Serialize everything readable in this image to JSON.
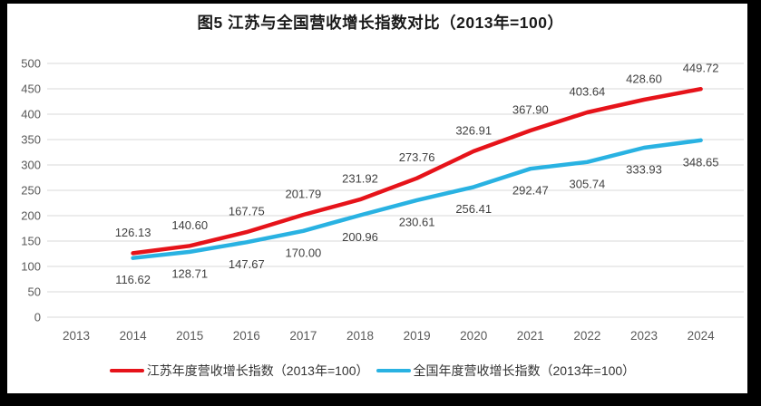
{
  "chart_data": {
    "type": "line",
    "title": "图5  江苏与全国营收增长指数对比（2013年=100）",
    "categories": [
      "2013",
      "2014",
      "2015",
      "2016",
      "2017",
      "2018",
      "2019",
      "2020",
      "2021",
      "2022",
      "2023",
      "2024"
    ],
    "series": [
      {
        "name": "江苏年度营收增长指数（2013年=100）",
        "color": "#e6131a",
        "start_category_index": 1,
        "values": [
          126.13,
          140.6,
          167.75,
          201.79,
          231.92,
          273.76,
          326.91,
          367.9,
          403.64,
          428.6,
          449.72
        ]
      },
      {
        "name": "全国年度营收增长指数（2013年=100）",
        "color": "#29b2e2",
        "start_category_index": 1,
        "values": [
          116.62,
          128.71,
          147.67,
          170.0,
          200.96,
          230.61,
          256.41,
          292.47,
          305.74,
          333.93,
          348.65
        ]
      }
    ],
    "yticks": [
      0,
      50,
      100,
      150,
      200,
      250,
      300,
      350,
      400,
      450,
      500
    ],
    "ylim": [
      0,
      500
    ],
    "grid": "horizontal",
    "legend_position": "bottom",
    "data_labels": true,
    "data_labels_decimals": 2
  },
  "palette": {
    "grid_line": "#d9d9d9",
    "axis_tick_text": "#595959",
    "data_label_text": "#404040",
    "title_text": "#1a1a1a",
    "legend_text": "#333333",
    "page_background": "#ffffff",
    "outer_background": "#000000"
  }
}
